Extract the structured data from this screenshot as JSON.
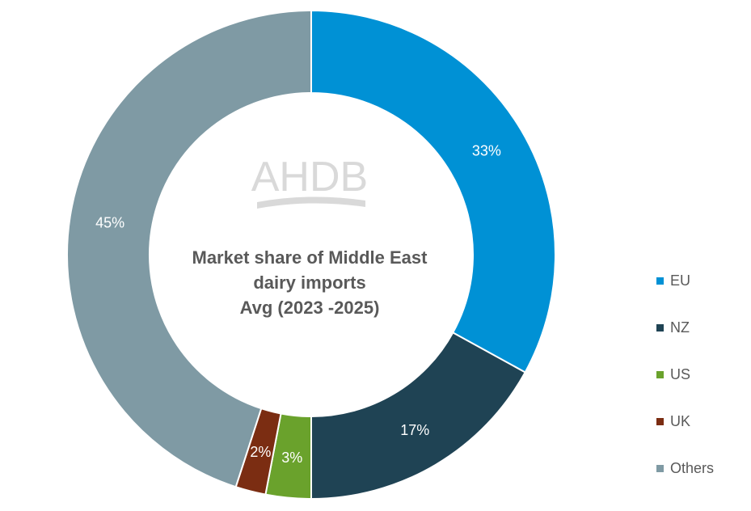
{
  "chart_data": {
    "type": "pie",
    "title": [
      "Market share of Middle East",
      "dairy imports",
      "Avg (2023 -2025)"
    ],
    "categories": [
      "EU",
      "NZ",
      "US",
      "UK",
      "Others"
    ],
    "values": [
      33,
      17,
      3,
      2,
      45
    ],
    "labels": [
      "33%",
      "17%",
      "3%",
      "2%",
      "45%"
    ],
    "colors": [
      "#0091d5",
      "#1f4354",
      "#6aa22c",
      "#7b2d12",
      "#7f9aa4"
    ],
    "legend_position": "right"
  },
  "watermark": "AHDB"
}
